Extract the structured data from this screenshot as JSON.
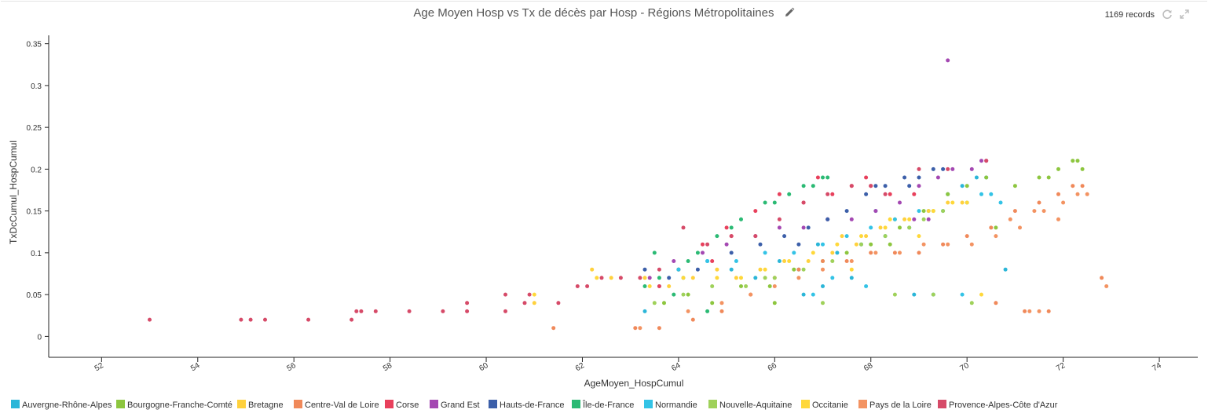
{
  "header": {
    "title": "Age Moyen Hosp vs Tx de décès par Hosp - Régions Métropolitaines",
    "records": "1169 records",
    "edit_icon": "pencil-icon",
    "refresh_icon": "refresh-icon",
    "expand_icon": "expand-icon"
  },
  "chart_data": {
    "type": "scatter",
    "title": "Age Moyen Hosp vs Tx de décès par Hosp - Régions Métropolitaines",
    "xlabel": "AgeMoyen_HospCumul",
    "ylabel": "TxDcCumul_HospCumul",
    "xlim": [
      50.9,
      74.8
    ],
    "ylim": [
      -0.025,
      0.36
    ],
    "xticks": [
      52,
      54,
      56,
      58,
      60,
      62,
      64,
      66,
      68,
      70,
      72,
      74
    ],
    "yticks": [
      0,
      0.05,
      0.1,
      0.15,
      0.2,
      0.25,
      0.3,
      0.35
    ],
    "grid": false,
    "legend_position": "bottom",
    "series": [
      {
        "name": "Auvergne-Rhône-Alpes",
        "color": "#2bb6d8",
        "points": [
          [
            63.3,
            0.03
          ],
          [
            63.6,
            0.06
          ],
          [
            64.1,
            0.07
          ],
          [
            64.6,
            0.09
          ],
          [
            65.1,
            0.08
          ],
          [
            65.6,
            0.07
          ],
          [
            66.1,
            0.09
          ],
          [
            66.5,
            0.08
          ],
          [
            66.9,
            0.11
          ],
          [
            67.3,
            0.1
          ],
          [
            67.8,
            0.11
          ],
          [
            68.3,
            0.12
          ],
          [
            68.8,
            0.13
          ],
          [
            69.2,
            0.15
          ],
          [
            69.6,
            0.17
          ],
          [
            69.9,
            0.18
          ],
          [
            70.2,
            0.19
          ],
          [
            70.4,
            0.19
          ],
          [
            67.0,
            0.06
          ],
          [
            67.6,
            0.07
          ],
          [
            68.9,
            0.05
          ],
          [
            69.3,
            0.05
          ],
          [
            68.1,
            0.15
          ],
          [
            66.6,
            0.05
          ],
          [
            70.8,
            0.08
          ]
        ]
      },
      {
        "name": "Bourgogne-Franche-Comté",
        "color": "#8dc63f",
        "points": [
          [
            63.7,
            0.04
          ],
          [
            64.2,
            0.05
          ],
          [
            64.7,
            0.04
          ],
          [
            65.3,
            0.06
          ],
          [
            65.9,
            0.06
          ],
          [
            66.4,
            0.08
          ],
          [
            67.0,
            0.09
          ],
          [
            67.5,
            0.1
          ],
          [
            68.0,
            0.11
          ],
          [
            68.6,
            0.13
          ],
          [
            69.1,
            0.15
          ],
          [
            69.6,
            0.17
          ],
          [
            70.0,
            0.18
          ],
          [
            70.4,
            0.19
          ],
          [
            71.0,
            0.18
          ],
          [
            71.5,
            0.19
          ],
          [
            71.9,
            0.2
          ],
          [
            72.2,
            0.21
          ],
          [
            72.3,
            0.21
          ],
          [
            72.4,
            0.2
          ],
          [
            71.7,
            0.19
          ],
          [
            66.0,
            0.04
          ],
          [
            70.6,
            0.13
          ],
          [
            68.4,
            0.11
          ]
        ]
      },
      {
        "name": "Bretagne",
        "color": "#ffd13d",
        "points": [
          [
            61.0,
            0.04
          ],
          [
            62.2,
            0.08
          ],
          [
            62.6,
            0.07
          ],
          [
            63.3,
            0.07
          ],
          [
            63.8,
            0.06
          ],
          [
            64.3,
            0.07
          ],
          [
            64.8,
            0.08
          ],
          [
            65.2,
            0.07
          ],
          [
            65.7,
            0.08
          ],
          [
            66.2,
            0.09
          ],
          [
            66.7,
            0.09
          ],
          [
            67.2,
            0.1
          ],
          [
            67.7,
            0.11
          ],
          [
            68.2,
            0.13
          ],
          [
            68.7,
            0.14
          ],
          [
            69.2,
            0.15
          ],
          [
            69.6,
            0.16
          ],
          [
            69.9,
            0.16
          ],
          [
            67.4,
            0.12
          ],
          [
            67.9,
            0.12
          ],
          [
            68.5,
            0.14
          ]
        ]
      },
      {
        "name": "Centre-Val de Loire",
        "color": "#f0895a",
        "points": [
          [
            61.4,
            0.01
          ],
          [
            63.1,
            0.01
          ],
          [
            63.6,
            0.01
          ],
          [
            64.3,
            0.02
          ],
          [
            64.9,
            0.03
          ],
          [
            65.5,
            0.05
          ],
          [
            66.0,
            0.07
          ],
          [
            66.5,
            0.08
          ],
          [
            67.0,
            0.09
          ],
          [
            67.5,
            0.09
          ],
          [
            68.0,
            0.1
          ],
          [
            68.5,
            0.1
          ],
          [
            69.0,
            0.1
          ],
          [
            69.5,
            0.11
          ],
          [
            70.0,
            0.12
          ],
          [
            70.5,
            0.13
          ],
          [
            71.0,
            0.15
          ],
          [
            71.5,
            0.16
          ],
          [
            71.9,
            0.17
          ],
          [
            72.2,
            0.18
          ],
          [
            72.4,
            0.18
          ],
          [
            71.2,
            0.03
          ],
          [
            71.7,
            0.03
          ],
          [
            72.8,
            0.07
          ],
          [
            70.6,
            0.04
          ]
        ]
      },
      {
        "name": "Corse",
        "color": "#e8405c",
        "points": [
          [
            64.5,
            0.11
          ],
          [
            65.0,
            0.13
          ],
          [
            65.6,
            0.15
          ],
          [
            66.1,
            0.17
          ],
          [
            66.6,
            0.16
          ],
          [
            67.2,
            0.17
          ],
          [
            67.6,
            0.18
          ],
          [
            68.0,
            0.18
          ],
          [
            68.4,
            0.17
          ],
          [
            68.9,
            0.17
          ],
          [
            66.9,
            0.19
          ],
          [
            67.9,
            0.19
          ],
          [
            65.1,
            0.12
          ],
          [
            64.7,
            0.09
          ],
          [
            63.6,
            0.06
          ],
          [
            64.0,
            0.08
          ]
        ]
      },
      {
        "name": "Grand Est",
        "color": "#a448b2",
        "points": [
          [
            63.4,
            0.07
          ],
          [
            63.9,
            0.09
          ],
          [
            64.5,
            0.1
          ],
          [
            65.0,
            0.11
          ],
          [
            65.6,
            0.12
          ],
          [
            66.1,
            0.13
          ],
          [
            66.6,
            0.13
          ],
          [
            67.1,
            0.14
          ],
          [
            67.6,
            0.14
          ],
          [
            68.1,
            0.15
          ],
          [
            68.6,
            0.16
          ],
          [
            69.0,
            0.18
          ],
          [
            69.4,
            0.19
          ],
          [
            69.7,
            0.2
          ],
          [
            70.1,
            0.2
          ],
          [
            70.3,
            0.21
          ],
          [
            70.4,
            0.21
          ],
          [
            69.6,
            0.33
          ],
          [
            68.9,
            0.14
          ],
          [
            69.2,
            0.14
          ]
        ]
      },
      {
        "name": "Hauts-de-France",
        "color": "#3c5fa9",
        "points": [
          [
            63.3,
            0.08
          ],
          [
            63.8,
            0.07
          ],
          [
            64.4,
            0.08
          ],
          [
            65.1,
            0.1
          ],
          [
            65.7,
            0.11
          ],
          [
            66.2,
            0.12
          ],
          [
            66.7,
            0.13
          ],
          [
            67.1,
            0.14
          ],
          [
            67.5,
            0.15
          ],
          [
            67.9,
            0.17
          ],
          [
            68.3,
            0.18
          ],
          [
            68.7,
            0.19
          ],
          [
            69.0,
            0.19
          ],
          [
            69.3,
            0.2
          ],
          [
            69.5,
            0.2
          ],
          [
            68.8,
            0.18
          ],
          [
            68.1,
            0.18
          ],
          [
            66.5,
            0.11
          ]
        ]
      },
      {
        "name": "Île-de-France",
        "color": "#2bba74",
        "points": [
          [
            63.3,
            0.06
          ],
          [
            63.6,
            0.07
          ],
          [
            64.0,
            0.08
          ],
          [
            64.4,
            0.1
          ],
          [
            64.8,
            0.12
          ],
          [
            65.3,
            0.14
          ],
          [
            65.8,
            0.16
          ],
          [
            66.3,
            0.17
          ],
          [
            66.6,
            0.18
          ],
          [
            66.8,
            0.18
          ],
          [
            67.0,
            0.19
          ],
          [
            67.1,
            0.19
          ],
          [
            65.1,
            0.13
          ],
          [
            64.2,
            0.09
          ],
          [
            63.9,
            0.05
          ],
          [
            64.6,
            0.03
          ],
          [
            63.5,
            0.1
          ],
          [
            66.0,
            0.16
          ]
        ]
      },
      {
        "name": "Normandie",
        "color": "#33c3e6",
        "points": [
          [
            64.0,
            0.08
          ],
          [
            64.6,
            0.09
          ],
          [
            65.2,
            0.09
          ],
          [
            65.8,
            0.1
          ],
          [
            66.4,
            0.1
          ],
          [
            67.0,
            0.11
          ],
          [
            67.5,
            0.12
          ],
          [
            68.0,
            0.13
          ],
          [
            68.5,
            0.14
          ],
          [
            69.0,
            0.15
          ],
          [
            69.5,
            0.15
          ],
          [
            70.0,
            0.16
          ],
          [
            70.3,
            0.17
          ],
          [
            70.5,
            0.17
          ],
          [
            67.2,
            0.07
          ],
          [
            67.9,
            0.06
          ],
          [
            69.9,
            0.05
          ],
          [
            70.7,
            0.16
          ],
          [
            66.8,
            0.05
          ]
        ]
      },
      {
        "name": "Nouvelle-Aquitaine",
        "color": "#9fd15a",
        "points": [
          [
            63.5,
            0.04
          ],
          [
            64.1,
            0.05
          ],
          [
            64.7,
            0.06
          ],
          [
            65.4,
            0.06
          ],
          [
            66.0,
            0.07
          ],
          [
            66.6,
            0.08
          ],
          [
            67.2,
            0.09
          ],
          [
            67.8,
            0.11
          ],
          [
            68.3,
            0.12
          ],
          [
            68.8,
            0.13
          ],
          [
            69.1,
            0.14
          ],
          [
            69.3,
            0.15
          ],
          [
            69.5,
            0.15
          ],
          [
            68.5,
            0.05
          ],
          [
            69.3,
            0.05
          ],
          [
            70.1,
            0.04
          ],
          [
            67.0,
            0.04
          ],
          [
            65.8,
            0.07
          ]
        ]
      },
      {
        "name": "Occitanie",
        "color": "#ffd83a",
        "points": [
          [
            61.0,
            0.05
          ],
          [
            62.3,
            0.07
          ],
          [
            63.4,
            0.06
          ],
          [
            64.1,
            0.07
          ],
          [
            64.8,
            0.07
          ],
          [
            65.3,
            0.07
          ],
          [
            65.8,
            0.08
          ],
          [
            66.3,
            0.09
          ],
          [
            66.8,
            0.1
          ],
          [
            67.3,
            0.11
          ],
          [
            67.8,
            0.12
          ],
          [
            68.3,
            0.13
          ],
          [
            68.8,
            0.14
          ],
          [
            69.3,
            0.15
          ],
          [
            69.7,
            0.16
          ],
          [
            70.0,
            0.16
          ],
          [
            70.3,
            0.05
          ],
          [
            68.4,
            0.14
          ],
          [
            67.6,
            0.08
          ],
          [
            69.0,
            0.12
          ]
        ]
      },
      {
        "name": "Pays de la Loire",
        "color": "#f39362",
        "points": [
          [
            63.2,
            0.01
          ],
          [
            64.2,
            0.03
          ],
          [
            64.9,
            0.04
          ],
          [
            65.5,
            0.05
          ],
          [
            66.0,
            0.06
          ],
          [
            66.5,
            0.07
          ],
          [
            67.0,
            0.08
          ],
          [
            67.6,
            0.09
          ],
          [
            68.1,
            0.1
          ],
          [
            68.6,
            0.1
          ],
          [
            69.1,
            0.11
          ],
          [
            69.6,
            0.11
          ],
          [
            70.1,
            0.11
          ],
          [
            70.6,
            0.12
          ],
          [
            71.1,
            0.13
          ],
          [
            71.6,
            0.15
          ],
          [
            72.0,
            0.16
          ],
          [
            72.3,
            0.17
          ],
          [
            72.5,
            0.17
          ],
          [
            71.4,
            0.15
          ],
          [
            70.9,
            0.14
          ],
          [
            71.9,
            0.14
          ],
          [
            71.5,
            0.03
          ],
          [
            72.9,
            0.06
          ],
          [
            71.3,
            0.03
          ]
        ]
      },
      {
        "name": "Provence-Alpes-Côte d'Azur",
        "color": "#d64a68",
        "points": [
          [
            53.0,
            0.02
          ],
          [
            54.9,
            0.02
          ],
          [
            55.1,
            0.02
          ],
          [
            55.4,
            0.02
          ],
          [
            56.3,
            0.02
          ],
          [
            57.2,
            0.02
          ],
          [
            57.3,
            0.03
          ],
          [
            57.4,
            0.03
          ],
          [
            57.7,
            0.03
          ],
          [
            58.4,
            0.03
          ],
          [
            59.1,
            0.03
          ],
          [
            59.6,
            0.04
          ],
          [
            59.6,
            0.03
          ],
          [
            60.4,
            0.05
          ],
          [
            60.4,
            0.03
          ],
          [
            60.8,
            0.04
          ],
          [
            60.9,
            0.05
          ],
          [
            61.5,
            0.04
          ],
          [
            61.9,
            0.06
          ],
          [
            62.1,
            0.06
          ],
          [
            62.4,
            0.07
          ],
          [
            62.8,
            0.07
          ],
          [
            63.2,
            0.07
          ],
          [
            63.6,
            0.08
          ],
          [
            64.1,
            0.13
          ],
          [
            64.6,
            0.11
          ],
          [
            65.1,
            0.12
          ],
          [
            65.6,
            0.12
          ],
          [
            66.1,
            0.14
          ],
          [
            66.6,
            0.16
          ],
          [
            67.1,
            0.17
          ],
          [
            67.6,
            0.18
          ],
          [
            68.0,
            0.18
          ],
          [
            68.3,
            0.17
          ],
          [
            69.0,
            0.2
          ],
          [
            69.6,
            0.2
          ],
          [
            70.4,
            0.21
          ]
        ]
      }
    ]
  }
}
